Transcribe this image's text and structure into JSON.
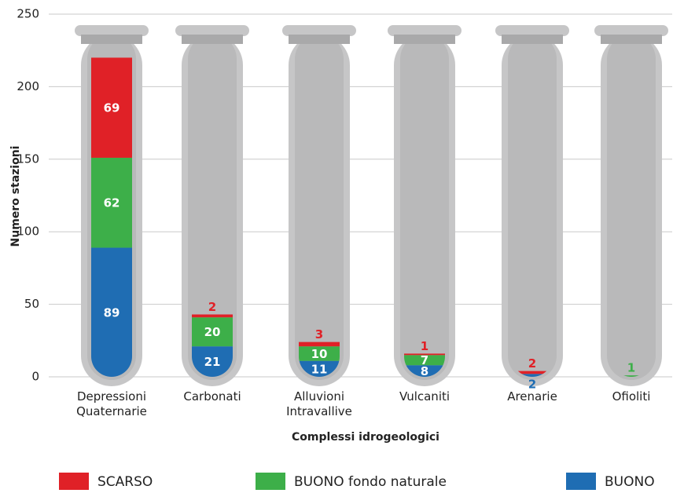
{
  "chart_data": {
    "type": "stacked-bar",
    "x_label": "Complessi idrogeologici",
    "y_label": "Numero stazioni",
    "categories": [
      "Depressioni Quaternarie",
      "Carbonati",
      "Alluvioni Intravallive",
      "Vulcaniti",
      "Arenarie",
      "Ofioliti"
    ],
    "series": [
      {
        "name": "SCARSO",
        "color": "#e02127",
        "values": [
          69,
          2,
          3,
          1,
          2,
          0
        ]
      },
      {
        "name": "BUONO fondo naturale",
        "color": "#3daf49",
        "values": [
          62,
          20,
          10,
          7,
          0,
          1
        ]
      },
      {
        "name": "BUONO",
        "color": "#1f6db3",
        "values": [
          89,
          21,
          11,
          8,
          2,
          0
        ]
      }
    ],
    "ylim": [
      0,
      250
    ],
    "yticks": [
      0,
      50,
      100,
      150,
      200,
      250
    ],
    "grid": true
  }
}
